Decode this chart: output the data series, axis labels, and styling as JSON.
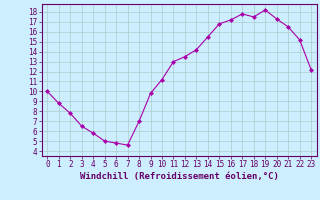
{
  "x": [
    0,
    1,
    2,
    3,
    4,
    5,
    6,
    7,
    8,
    9,
    10,
    11,
    12,
    13,
    14,
    15,
    16,
    17,
    18,
    19,
    20,
    21,
    22,
    23
  ],
  "y": [
    10,
    8.8,
    7.8,
    6.5,
    5.8,
    5.0,
    4.8,
    4.6,
    7.0,
    9.8,
    11.2,
    13.0,
    13.5,
    14.2,
    15.5,
    16.8,
    17.2,
    17.8,
    17.5,
    18.2,
    17.3,
    16.5,
    15.2,
    12.2
  ],
  "line_color": "#aa00aa",
  "marker": "D",
  "marker_size": 2.0,
  "bg_color": "#cceeff",
  "grid_color": "#aacccc",
  "xlabel": "Windchill (Refroidissement éolien,°C)",
  "xlim": [
    -0.5,
    23.5
  ],
  "ylim": [
    3.5,
    18.8
  ],
  "yticks": [
    4,
    5,
    6,
    7,
    8,
    9,
    10,
    11,
    12,
    13,
    14,
    15,
    16,
    17,
    18
  ],
  "xticks": [
    0,
    1,
    2,
    3,
    4,
    5,
    6,
    7,
    8,
    9,
    10,
    11,
    12,
    13,
    14,
    15,
    16,
    17,
    18,
    19,
    20,
    21,
    22,
    23
  ],
  "tick_fontsize": 5.5,
  "xlabel_fontsize": 6.5,
  "spine_color": "#660066",
  "tick_color": "#660066"
}
